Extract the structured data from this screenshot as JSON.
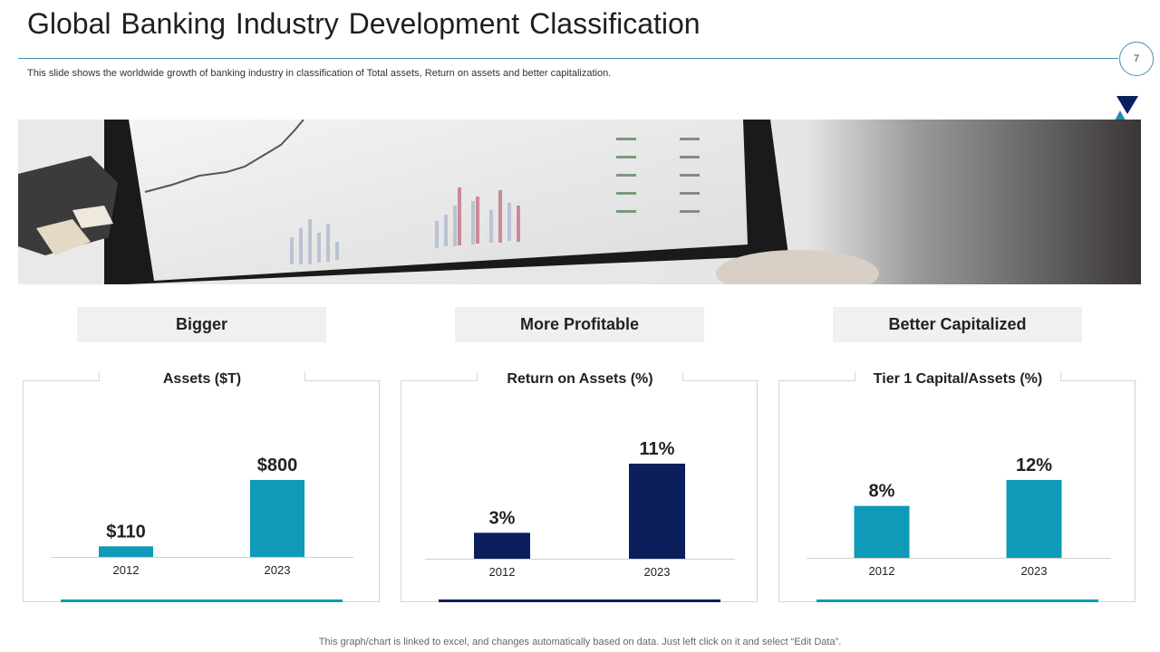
{
  "slide": {
    "title": "Global Banking Industry Development Classification",
    "subtitle": "This slide shows the worldwide growth of banking industry in classification of Total assets, Return on assets and better capitalization.",
    "page_number": "7",
    "footer": "This graph/chart is linked to excel,  and changes automatically based on data. Just left click on it and select “Edit Data”."
  },
  "colors": {
    "teal": "#0e9ab8",
    "navy": "#0b1f5c",
    "rule": "#4a8fae"
  },
  "categories": [
    "Bigger",
    "More Profitable",
    "Better Capitalized"
  ],
  "chart_data": [
    {
      "type": "bar",
      "title": "Assets ($T)",
      "categories": [
        "2012",
        "2023"
      ],
      "values": [
        110,
        800
      ],
      "labels": [
        "$110",
        "$800"
      ],
      "color": "#0e9ab8",
      "ylim": [
        0,
        1000
      ]
    },
    {
      "type": "bar",
      "title": "Return on Assets (%)",
      "categories": [
        "2012",
        "2023"
      ],
      "values": [
        3,
        11
      ],
      "labels": [
        "3%",
        "11%"
      ],
      "color": "#0b1f5c",
      "ylim": [
        0,
        12
      ]
    },
    {
      "type": "bar",
      "title": "Tier 1 Capital/Assets (%)",
      "categories": [
        "2012",
        "2023"
      ],
      "values": [
        8,
        12
      ],
      "labels": [
        "8%",
        "12%"
      ],
      "color": "#0e9ab8",
      "ylim": [
        0,
        15
      ]
    }
  ]
}
